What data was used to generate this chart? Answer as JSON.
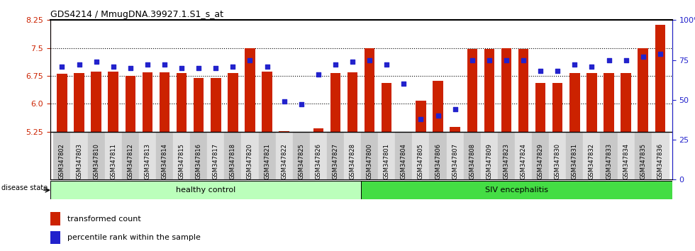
{
  "title": "GDS4214 / MmugDNA.39927.1.S1_s_at",
  "samples": [
    "GSM347802",
    "GSM347803",
    "GSM347810",
    "GSM347811",
    "GSM347812",
    "GSM347813",
    "GSM347814",
    "GSM347815",
    "GSM347816",
    "GSM347817",
    "GSM347818",
    "GSM347820",
    "GSM347821",
    "GSM347822",
    "GSM347825",
    "GSM347826",
    "GSM347827",
    "GSM347828",
    "GSM347800",
    "GSM347801",
    "GSM347804",
    "GSM347805",
    "GSM347806",
    "GSM347807",
    "GSM347808",
    "GSM347809",
    "GSM347823",
    "GSM347824",
    "GSM347829",
    "GSM347830",
    "GSM347831",
    "GSM347832",
    "GSM347833",
    "GSM347834",
    "GSM347835",
    "GSM347836"
  ],
  "bar_values": [
    6.8,
    6.82,
    6.87,
    6.86,
    6.75,
    6.84,
    6.84,
    6.82,
    6.7,
    6.7,
    6.82,
    7.5,
    6.87,
    5.26,
    5.25,
    5.34,
    6.82,
    6.84,
    7.5,
    6.55,
    5.25,
    6.08,
    6.62,
    5.38,
    7.47,
    7.47,
    7.5,
    7.47,
    6.55,
    6.55,
    6.82,
    6.82,
    6.82,
    6.82,
    7.5,
    8.12
  ],
  "percentile_values": [
    71,
    72,
    74,
    71,
    70,
    72,
    72,
    70,
    70,
    70,
    71,
    75,
    71,
    49,
    47,
    66,
    72,
    74,
    75,
    72,
    60,
    38,
    40,
    44,
    75,
    75,
    75,
    75,
    68,
    68,
    72,
    71,
    75,
    75,
    77,
    79
  ],
  "healthy_count": 18,
  "ylim_left": [
    5.25,
    8.25
  ],
  "ylim_right": [
    0,
    100
  ],
  "yticks_left": [
    5.25,
    6.0,
    6.75,
    7.5,
    8.25
  ],
  "yticks_right": [
    0,
    25,
    50,
    75,
    100
  ],
  "bar_color": "#cc2200",
  "dot_color": "#2222cc",
  "healthy_bg": "#bbffbb",
  "siv_bg": "#44dd44",
  "healthy_label": "healthy control",
  "siv_label": "SIV encephalitis",
  "disease_state_label": "disease state",
  "legend_bar_label": "transformed count",
  "legend_dot_label": "percentile rank within the sample"
}
